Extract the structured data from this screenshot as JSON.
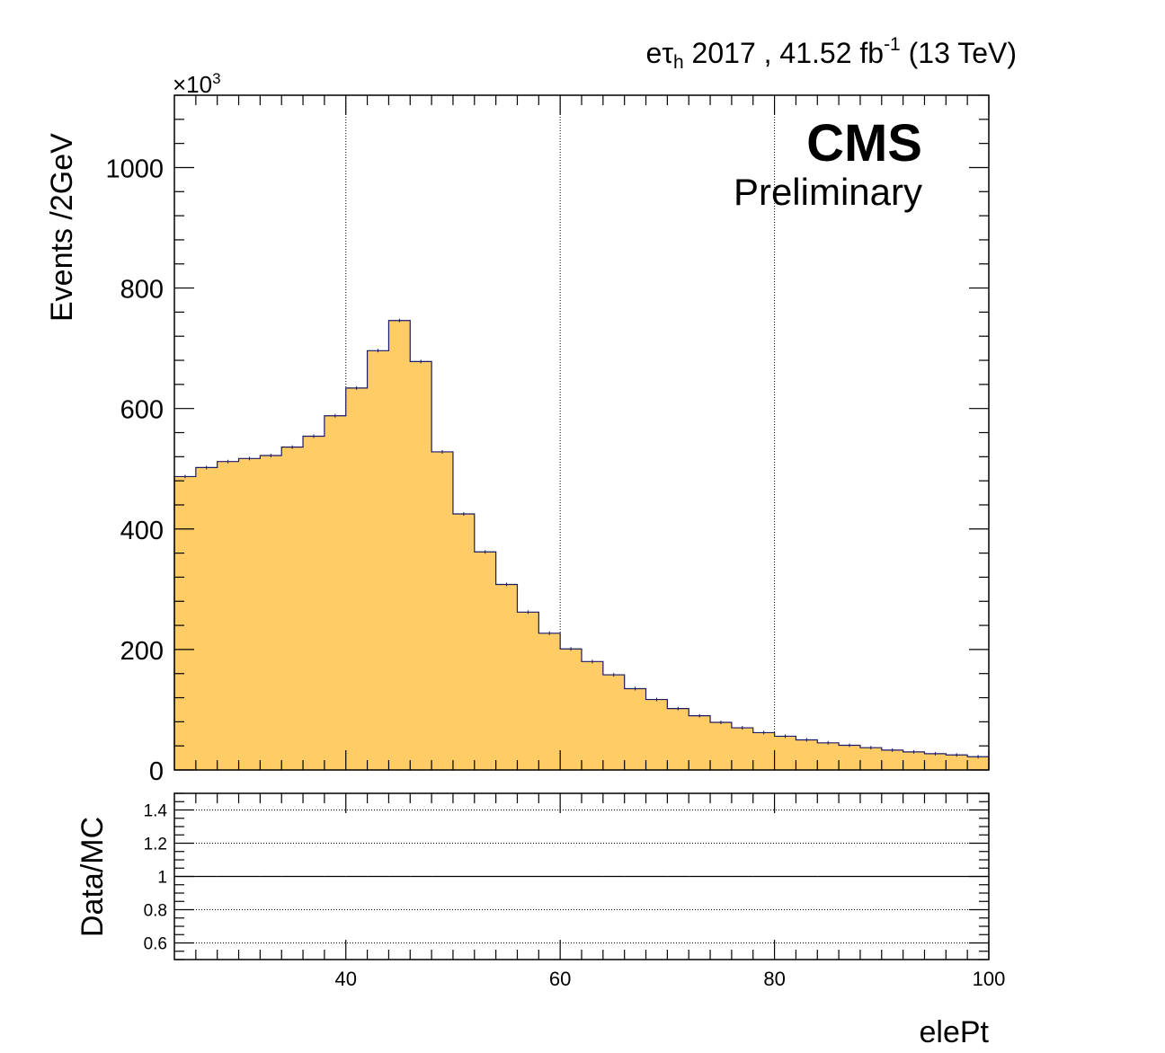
{
  "header": {
    "channel_e": "e",
    "channel_tau": "τ",
    "channel_sub": "h",
    "lumi_text": " 2017 , 41.52 fb",
    "lumi_exp": "-1",
    "lumi_energy": " (13 TeV)",
    "cms_label": "CMS",
    "cms_sublabel": "Preliminary",
    "multiplier_base": "×10",
    "multiplier_exp": "3"
  },
  "chart_data": [
    {
      "type": "bar",
      "panel": "main",
      "style": "histogram",
      "xlabel": "elePt",
      "ylabel": "Events /2GeV",
      "y_multiplier": 1000,
      "xlim": [
        24,
        100
      ],
      "ylim": [
        0,
        1120
      ],
      "bin_width": 2,
      "grid_x": true,
      "grid_y": false,
      "x_ticks": [
        40,
        60,
        80,
        100
      ],
      "y_ticks": [
        0,
        200,
        400,
        600,
        800,
        1000
      ],
      "fill_color": "#ffcc66",
      "line_color": "#1a1a66",
      "bin_edges_start": 24,
      "values": [
        487,
        502,
        512,
        517,
        522,
        536,
        554,
        588,
        634,
        696,
        746,
        678,
        528,
        425,
        362,
        308,
        262,
        227,
        201,
        180,
        158,
        135,
        117,
        102,
        90,
        79,
        70,
        62,
        56,
        50,
        45,
        41,
        37,
        33,
        30,
        27,
        25,
        22
      ]
    },
    {
      "type": "scatter",
      "panel": "ratio",
      "ylabel": "Data/MC",
      "xlabel": "elePt",
      "xlim": [
        24,
        100
      ],
      "ylim": [
        0.5,
        1.5
      ],
      "y_ticks": [
        0.6,
        0.8,
        1,
        1.2,
        1.4
      ],
      "y_tick_labels": [
        "0.6",
        "0.8",
        "1",
        "1.2",
        "1.4"
      ],
      "x_ticks": [
        40,
        60,
        80,
        100
      ],
      "grid_y": true,
      "x": [
        25,
        27,
        29,
        31,
        33,
        35,
        37,
        39,
        41,
        43,
        45,
        47,
        49,
        51,
        53,
        55,
        57,
        59,
        61,
        63,
        65,
        67,
        69,
        71,
        73,
        75,
        77,
        79,
        81,
        83,
        85,
        87,
        89,
        91,
        93,
        95,
        97,
        99
      ],
      "values": [
        1,
        1,
        1,
        1,
        1,
        1,
        1,
        1,
        1,
        1,
        1,
        1,
        1,
        1,
        1,
        1,
        1,
        1,
        1,
        1,
        1,
        1,
        1,
        1,
        1,
        1,
        1,
        1,
        1,
        1,
        1,
        1,
        1,
        1,
        1,
        1,
        1,
        1
      ]
    }
  ]
}
